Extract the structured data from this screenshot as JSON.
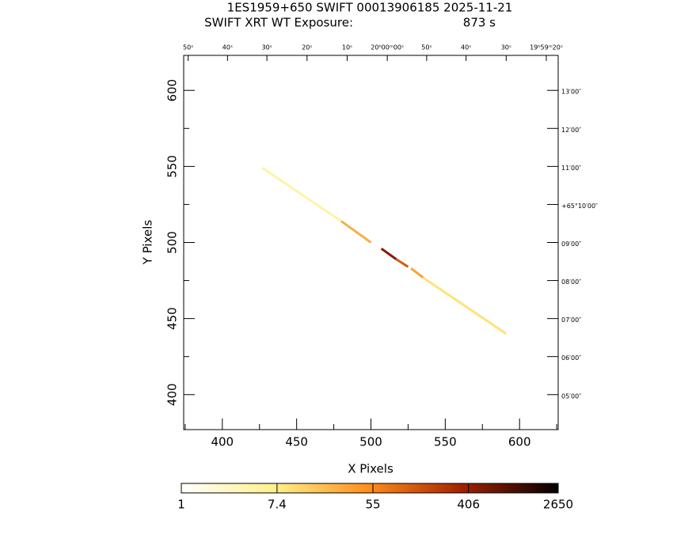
{
  "chart_data": {
    "type": "image",
    "title": "1ES1959+650 SWIFT 00013906185 2025-11-21",
    "subtitle": "SWIFT XRT WT Exposure:",
    "exposure": "873 s",
    "x_label": "X Pixels",
    "y_label": "Y Pixels",
    "xlim": [
      374,
      626
    ],
    "ylim": [
      377,
      623
    ],
    "xticks": [
      400,
      450,
      500,
      550,
      600
    ],
    "x_minor_ticks": [
      375,
      425,
      475,
      525,
      575,
      625
    ],
    "yticks": [
      400,
      450,
      500,
      550,
      600
    ],
    "y_minor_ticks": [
      425,
      475,
      525,
      575
    ],
    "x2ticks": [
      {
        "value": 377,
        "label": "50ˢ"
      },
      {
        "value": 403.5,
        "label": "40ˢ"
      },
      {
        "value": 430,
        "label": "30ˢ"
      },
      {
        "value": 457,
        "label": "20ˢ"
      },
      {
        "value": 484,
        "label": "10ˢ"
      },
      {
        "value": 511,
        "label": "20ʰ00ᵐ00ˢ"
      },
      {
        "value": 537.5,
        "label": "50ˢ"
      },
      {
        "value": 564,
        "label": "40ˢ"
      },
      {
        "value": 591,
        "label": "30ˢ"
      },
      {
        "value": 618,
        "label": "19ʰ59ᵐ20ˢ"
      }
    ],
    "y2ticks": [
      {
        "value": 600,
        "label": "13′00″"
      },
      {
        "value": 575,
        "label": "12′00″"
      },
      {
        "value": 550,
        "label": "11′00″"
      },
      {
        "value": 525,
        "label": "+65°10′00″"
      },
      {
        "value": 500,
        "label": "09′00″"
      },
      {
        "value": 475,
        "label": "08′00″"
      },
      {
        "value": 450,
        "label": "07′00″"
      },
      {
        "value": 425,
        "label": "06′00″"
      },
      {
        "value": 400,
        "label": "05′00″"
      }
    ],
    "segments": [
      {
        "x": [
          427,
          480
        ],
        "y": [
          549,
          514
        ],
        "color": "#fff3a8"
      },
      {
        "x": [
          480,
          500
        ],
        "y": [
          514,
          500
        ],
        "color": "#f4b04a"
      },
      {
        "x": [
          507,
          517
        ],
        "y": [
          496,
          489
        ],
        "color": "#8a1800"
      },
      {
        "x": [
          517,
          525
        ],
        "y": [
          489,
          484
        ],
        "color": "#d05a12"
      },
      {
        "x": [
          527,
          535
        ],
        "y": [
          483,
          477
        ],
        "color": "#f7a535"
      },
      {
        "x": [
          535,
          591
        ],
        "y": [
          477,
          440
        ],
        "color": "#ffe27a"
      }
    ],
    "colorbar": {
      "scale": "log",
      "lim": [
        1,
        2650
      ],
      "ticks": [
        1,
        7.4,
        55,
        406,
        2650
      ]
    }
  }
}
